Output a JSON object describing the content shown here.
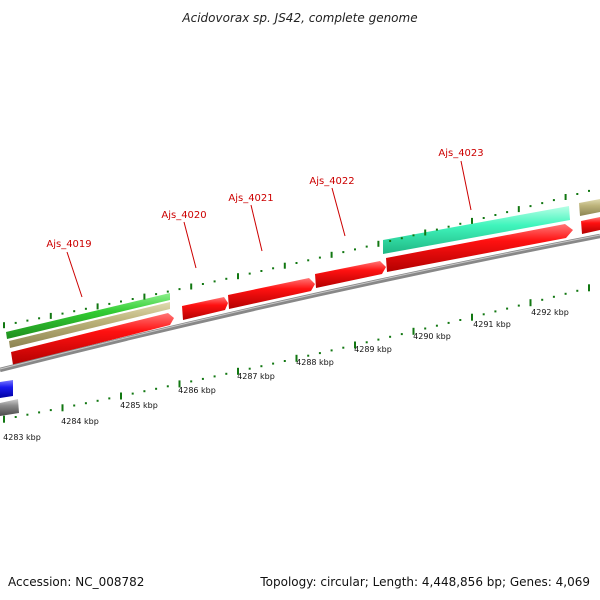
{
  "title": "Acidovorax sp. JS42, complete genome",
  "accession": "Accession: NC_008782",
  "topology": "Topology: circular; Length: 4,448,856 bp; Genes: 4,069",
  "colors": {
    "cds": "#ee0000",
    "backbone": "#888888",
    "tick": "#117711",
    "label_line": "#cc0000",
    "track_green": "#33cc33",
    "track_khaki": "#b8b078",
    "track_aqua": "#33ffbb",
    "track_blue": "#1a1aee",
    "track_gray": "#777777"
  },
  "gene_labels": [
    "Ajs_4019",
    "Ajs_4020",
    "Ajs_4021",
    "Ajs_4022",
    "Ajs_4023"
  ],
  "kbp_labels": [
    "4283 kbp",
    "4284 kbp",
    "4285 kbp",
    "4286 kbp",
    "4287 kbp",
    "4288 kbp",
    "4289 kbp",
    "4290 kbp",
    "4291 kbp",
    "4292 kbp"
  ]
}
